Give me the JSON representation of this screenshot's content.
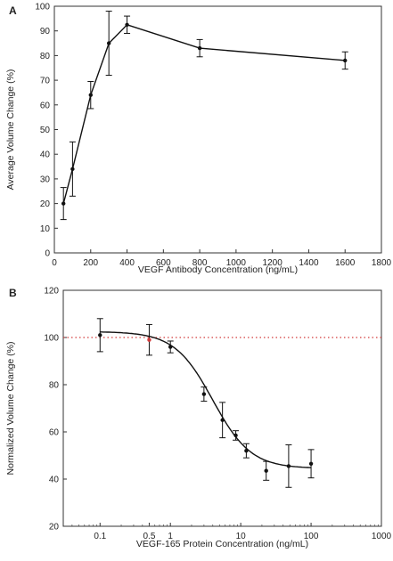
{
  "chart_data": [
    {
      "panel_label": "A",
      "type": "line",
      "xlabel": "VEGF Antibody Concentration (ng/mL)",
      "ylabel": "Average Volume Change (%)",
      "xlim": [
        0,
        1800
      ],
      "ylim": [
        0,
        100
      ],
      "xticks": [
        0,
        200,
        400,
        600,
        800,
        1000,
        1200,
        1400,
        1600,
        1800
      ],
      "yticks": [
        0,
        10,
        20,
        30,
        40,
        50,
        60,
        70,
        80,
        90,
        100
      ],
      "grid": false,
      "points": [
        {
          "x": 50,
          "y": 20,
          "err": 6.5
        },
        {
          "x": 100,
          "y": 34,
          "err": 11
        },
        {
          "x": 200,
          "y": 64,
          "err": 5.5
        },
        {
          "x": 300,
          "y": 85,
          "err": 13
        },
        {
          "x": 400,
          "y": 92.5,
          "err": 3.5
        },
        {
          "x": 800,
          "y": 83,
          "err": 3.5
        },
        {
          "x": 1600,
          "y": 78,
          "err": 3.5
        }
      ],
      "colors": {
        "line": "#111111",
        "marker": "#111111"
      }
    },
    {
      "panel_label": "B",
      "type": "scatter",
      "xscale": "log",
      "xlabel": "VEGF-165 Protein Concentration (ng/mL)",
      "ylabel": "Normalized Volume Change (%)",
      "xlim": [
        0.03,
        1000
      ],
      "ylim": [
        20,
        120
      ],
      "xticks": [
        {
          "value": 0.1,
          "label": "0.1"
        },
        {
          "value": 0.5,
          "label": "0.5"
        },
        {
          "value": 1,
          "label": "1"
        },
        {
          "value": 10,
          "label": "10"
        },
        {
          "value": 100,
          "label": "100"
        },
        {
          "value": 1000,
          "label": "1000"
        }
      ],
      "yticks": [
        20,
        40,
        60,
        80,
        100,
        120
      ],
      "grid": false,
      "reference_line": {
        "y": 100,
        "style": "dotted",
        "color": "#d23a3a"
      },
      "points": [
        {
          "x": 0.1,
          "y": 101,
          "err": 7
        },
        {
          "x": 0.5,
          "y": 99,
          "err": 6.5,
          "highlight": true
        },
        {
          "x": 1,
          "y": 96,
          "err": 2.5
        },
        {
          "x": 3,
          "y": 76,
          "err": 3
        },
        {
          "x": 5.5,
          "y": 65,
          "err": 7.5
        },
        {
          "x": 8.5,
          "y": 58.5,
          "err": 2
        },
        {
          "x": 12,
          "y": 52,
          "err": 3
        },
        {
          "x": 23,
          "y": 43.5,
          "err": 4
        },
        {
          "x": 48,
          "y": 45.5,
          "err": 9
        },
        {
          "x": 100,
          "y": 46.5,
          "err": 6
        }
      ],
      "fit_curve": {
        "model": "four-parameter logistic",
        "top": 102.5,
        "bottom": 44.5,
        "ec50": 4.0,
        "hill": 1.6
      },
      "colors": {
        "line": "#111111",
        "marker": "#111111",
        "highlight": "#d23a3a"
      }
    }
  ]
}
